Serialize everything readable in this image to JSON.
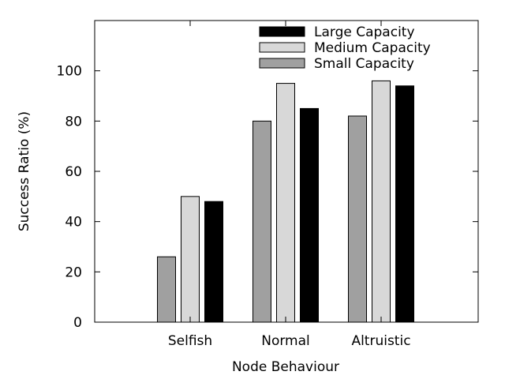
{
  "chart_data": {
    "type": "bar",
    "xlabel": "Node Behaviour",
    "ylabel": "Success Ratio (%)",
    "categories": [
      "Selfish",
      "Normal",
      "Altruistic"
    ],
    "ylim": [
      0,
      120
    ],
    "yticks": [
      0,
      20,
      40,
      60,
      80,
      100
    ],
    "grid": false,
    "legend_position": "top-right",
    "series": [
      {
        "name": "Small Capacity",
        "values": [
          26,
          80,
          82
        ],
        "color": "#a0a0a0"
      },
      {
        "name": "Medium Capacity",
        "values": [
          50,
          95,
          96
        ],
        "color": "#d8d8d8"
      },
      {
        "name": "Large Capacity",
        "values": [
          48,
          85,
          94
        ],
        "color": "#000000"
      }
    ],
    "legend_order": [
      "Large Capacity",
      "Medium Capacity",
      "Small Capacity"
    ]
  }
}
